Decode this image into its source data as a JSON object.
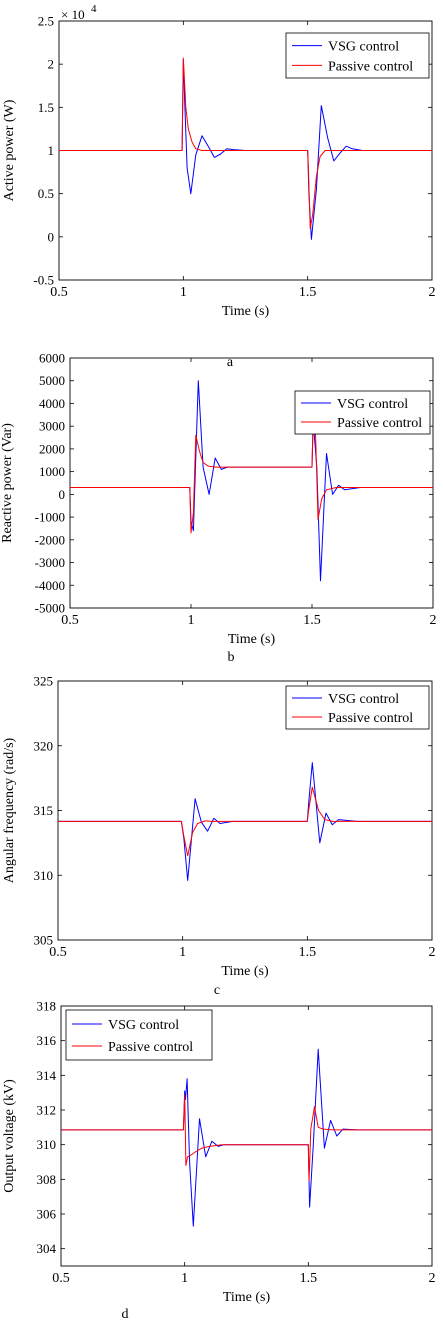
{
  "legend_labels": {
    "vsg": "VSG control",
    "passive": "Passive control"
  },
  "colors": {
    "vsg": "#0000ff",
    "passive": "#ff0000",
    "axis": "#000000"
  },
  "chart_data": [
    {
      "panel_label": "a",
      "type": "line",
      "xlabel": "Time (s)",
      "ylabel": "Active power (W)",
      "xlim": [
        0.5,
        2
      ],
      "ylim": [
        -0.5,
        2.5
      ],
      "exponent_label": "× 10",
      "exponent_power": "4",
      "xticks": [
        "0.5",
        "1",
        "1.5",
        "2"
      ],
      "yticks": [
        "-0.5",
        "0",
        "0.5",
        "1",
        "1.5",
        "2",
        "2.5"
      ],
      "legend_position": "top-right",
      "series": [
        {
          "name": "VSG control",
          "x": [
            0.5,
            0.995,
            1.0,
            1.005,
            1.015,
            1.03,
            1.05,
            1.075,
            1.1,
            1.125,
            1.15,
            1.175,
            1.2,
            1.25,
            1.3,
            1.5,
            1.505,
            1.515,
            1.535,
            1.555,
            1.58,
            1.605,
            1.63,
            1.655,
            1.68,
            1.72,
            1.8,
            2.0
          ],
          "y": [
            1.0,
            1.0,
            2.05,
            1.6,
            0.8,
            0.5,
            0.95,
            1.17,
            1.05,
            0.92,
            0.96,
            1.02,
            1.01,
            1.0,
            1.0,
            1.0,
            0.5,
            -0.03,
            0.55,
            1.52,
            1.15,
            0.88,
            0.97,
            1.05,
            1.02,
            1.0,
            1.0,
            1.0
          ]
        },
        {
          "name": "Passive control",
          "x": [
            0.5,
            0.995,
            1.0,
            1.003,
            1.01,
            1.02,
            1.035,
            1.05,
            1.075,
            1.1,
            1.15,
            1.3,
            1.5,
            1.503,
            1.51,
            1.52,
            1.535,
            1.55,
            1.57,
            1.6,
            1.65,
            2.0
          ],
          "y": [
            1.0,
            1.0,
            2.07,
            1.9,
            1.5,
            1.25,
            1.1,
            1.02,
            1.0,
            1.0,
            1.0,
            1.0,
            1.0,
            0.8,
            0.1,
            0.25,
            0.7,
            0.93,
            1.0,
            1.0,
            1.0,
            1.0
          ]
        }
      ]
    },
    {
      "panel_label": "b",
      "type": "line",
      "xlabel": "Time (s)",
      "ylabel": "Reactive power (Var)",
      "xlim": [
        0.5,
        2
      ],
      "ylim": [
        -5000,
        6000
      ],
      "xticks": [
        "0.5",
        "1",
        "1.5",
        "2"
      ],
      "yticks": [
        "6000",
        "5000",
        "4000",
        "3000",
        "2000",
        "1000",
        "0",
        "-1000",
        "-2000",
        "-3000",
        "-4000",
        "-5000"
      ],
      "legend_position": "top-right",
      "series": [
        {
          "name": "VSG control",
          "x": [
            0.5,
            0.995,
            1.0,
            1.01,
            1.03,
            1.05,
            1.075,
            1.1,
            1.125,
            1.15,
            1.2,
            1.5,
            1.505,
            1.52,
            1.535,
            1.56,
            1.585,
            1.61,
            1.635,
            1.7,
            2.0
          ],
          "y": [
            300,
            300,
            -1200,
            -1600,
            5000,
            1200,
            0,
            1600,
            1100,
            1200,
            1200,
            1200,
            3200,
            1200,
            -3800,
            1800,
            0,
            400,
            200,
            300,
            300
          ]
        },
        {
          "name": "Passive control",
          "x": [
            0.5,
            0.995,
            1.0,
            1.01,
            1.02,
            1.035,
            1.05,
            1.07,
            1.1,
            1.2,
            1.5,
            1.505,
            1.515,
            1.525,
            1.54,
            1.56,
            1.6,
            2.0
          ],
          "y": [
            300,
            300,
            -1700,
            -800,
            2600,
            1900,
            1400,
            1250,
            1200,
            1200,
            1200,
            3500,
            2600,
            -1100,
            -200,
            200,
            300,
            300
          ]
        }
      ]
    },
    {
      "panel_label": "c",
      "type": "line",
      "xlabel": "Time (s)",
      "ylabel": "Angular frequency (rad/s)",
      "xlim": [
        0.5,
        2
      ],
      "ylim": [
        305,
        325
      ],
      "xticks": [
        "0.5",
        "1",
        "1.5",
        "2"
      ],
      "yticks": [
        "325",
        "320",
        "315",
        "310",
        "305"
      ],
      "legend_position": "top-right",
      "series": [
        {
          "name": "VSG control",
          "x": [
            0.5,
            0.995,
            1.005,
            1.02,
            1.05,
            1.075,
            1.1,
            1.125,
            1.15,
            1.2,
            1.5,
            1.505,
            1.52,
            1.55,
            1.575,
            1.6,
            1.625,
            1.7,
            2.0
          ],
          "y": [
            314.16,
            314.16,
            312.8,
            309.6,
            315.9,
            314.1,
            313.4,
            314.4,
            314.0,
            314.16,
            314.16,
            315.5,
            318.7,
            312.5,
            314.8,
            313.9,
            314.3,
            314.16,
            314.16
          ]
        },
        {
          "name": "Passive control",
          "x": [
            0.5,
            0.995,
            1.005,
            1.02,
            1.04,
            1.06,
            1.09,
            1.12,
            1.2,
            1.5,
            1.505,
            1.52,
            1.545,
            1.57,
            1.6,
            2.0
          ],
          "y": [
            314.16,
            314.16,
            313.0,
            311.5,
            313.3,
            314.0,
            314.2,
            314.16,
            314.16,
            314.16,
            315.0,
            316.8,
            315.0,
            314.3,
            314.16,
            314.16
          ]
        }
      ]
    },
    {
      "panel_label": "d",
      "type": "line",
      "xlabel": "Time (s)",
      "ylabel": "Output voltage (kV)",
      "xlim": [
        0.5,
        2
      ],
      "ylim": [
        303,
        318
      ],
      "xticks": [
        "0.5",
        "1",
        "1.5",
        "2"
      ],
      "yticks": [
        "318",
        "316",
        "314",
        "312",
        "310",
        "308",
        "306",
        "304"
      ],
      "legend_position": "top-left",
      "series": [
        {
          "name": "VSG control",
          "x": [
            0.5,
            0.995,
            1.0,
            1.003,
            1.01,
            1.02,
            1.035,
            1.06,
            1.085,
            1.11,
            1.135,
            1.16,
            1.2,
            1.5,
            1.505,
            1.52,
            1.54,
            1.565,
            1.59,
            1.615,
            1.64,
            1.7,
            2.0
          ],
          "y": [
            310.85,
            310.85,
            313.1,
            312.6,
            313.8,
            309.0,
            305.3,
            311.5,
            309.3,
            310.2,
            309.9,
            310.0,
            310.0,
            310.0,
            306.4,
            310.0,
            315.5,
            309.8,
            311.4,
            310.5,
            310.9,
            310.85,
            310.85
          ]
        },
        {
          "name": "Passive control",
          "x": [
            0.5,
            0.995,
            1.0,
            1.005,
            1.012,
            1.025,
            1.045,
            1.07,
            1.1,
            1.15,
            1.2,
            1.5,
            1.503,
            1.51,
            1.525,
            1.54,
            1.56,
            1.6,
            2.0
          ],
          "y": [
            310.85,
            310.85,
            312.9,
            308.8,
            309.3,
            309.4,
            309.6,
            309.8,
            309.9,
            310.0,
            310.0,
            310.0,
            307.9,
            310.9,
            312.2,
            311.0,
            310.9,
            310.85,
            310.85
          ]
        }
      ]
    }
  ]
}
